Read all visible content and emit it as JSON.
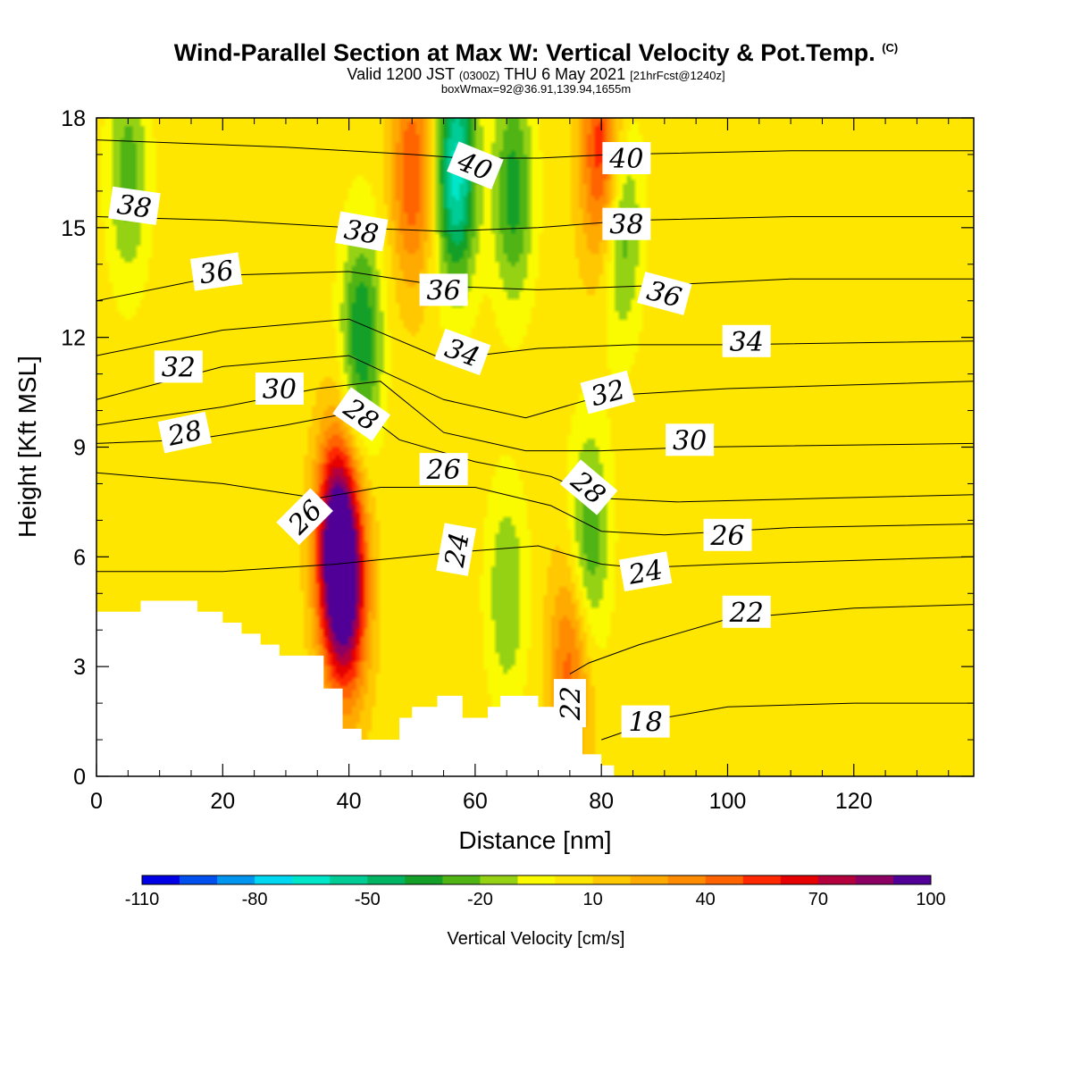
{
  "title": {
    "main": "Wind-Parallel Section at Max W: Vertical Velocity & Pot.Temp.",
    "copyright": "(C)",
    "valid_prefix": "Valid 1200 JST",
    "valid_utc": "(0300Z)",
    "valid_date": "THU 6 May 2021",
    "valid_fcst": "[21hrFcst@1240z]",
    "box": "boxWmax=92@36.91,139.94,1655m"
  },
  "chart_data": {
    "type": "heatmap",
    "xlabel": "Distance [nm]",
    "ylabel": "Height [Kft MSL]",
    "xlim": [
      0,
      139
    ],
    "ylim": [
      0,
      18
    ],
    "x_ticks": [
      0,
      20,
      40,
      60,
      80,
      100,
      120
    ],
    "y_ticks": [
      0,
      3,
      6,
      9,
      12,
      15,
      18
    ],
    "colorbar": {
      "title": "Vertical Velocity [cm/s]",
      "min": -110,
      "max": 100,
      "step": 10,
      "tick_labels": [
        "-110",
        "-80",
        "-50",
        "-20",
        "10",
        "40",
        "70",
        "100"
      ],
      "colors": [
        "#0000e6",
        "#0050f0",
        "#0096f0",
        "#00d7f0",
        "#00e6c8",
        "#00cc96",
        "#00b464",
        "#14a028",
        "#50b414",
        "#96d214",
        "#fafa00",
        "#ffe600",
        "#ffc800",
        "#ffaa00",
        "#ff8c00",
        "#ff6400",
        "#ff2800",
        "#e60000",
        "#b4003c",
        "#8c0064",
        "#500096"
      ]
    },
    "background_value_cm_s": 5,
    "velocity_features": [
      {
        "x": 38,
        "y": 6.2,
        "peak": 100
      },
      {
        "x": 40,
        "y": 5.0,
        "peak": 60
      },
      {
        "x": 50,
        "y": 16.5,
        "peak": 45
      },
      {
        "x": 57,
        "y": 16.5,
        "peak": -70
      },
      {
        "x": 80,
        "y": 17.0,
        "peak": 55
      },
      {
        "x": 75,
        "y": 3.0,
        "peak": 40
      },
      {
        "x": 42,
        "y": 12.0,
        "peak": -45
      },
      {
        "x": 66,
        "y": 16.0,
        "peak": -40
      },
      {
        "x": 83,
        "y": 15.0,
        "peak": -35
      },
      {
        "x": 5,
        "y": 16.5,
        "peak": -30
      },
      {
        "x": 78,
        "y": 6.5,
        "peak": -35
      },
      {
        "x": 65,
        "y": 5.0,
        "peak": -25
      }
    ],
    "terrain": [
      [
        0,
        4.5
      ],
      [
        7,
        4.5
      ],
      [
        7,
        4.8
      ],
      [
        16,
        4.8
      ],
      [
        16,
        4.5
      ],
      [
        20,
        4.5
      ],
      [
        20,
        4.2
      ],
      [
        23,
        4.2
      ],
      [
        23,
        3.9
      ],
      [
        26,
        3.9
      ],
      [
        26,
        3.6
      ],
      [
        29,
        3.6
      ],
      [
        29,
        3.3
      ],
      [
        36,
        3.3
      ],
      [
        36,
        2.4
      ],
      [
        39,
        2.4
      ],
      [
        39,
        1.3
      ],
      [
        42,
        1.3
      ],
      [
        42,
        1.0
      ],
      [
        48,
        1.0
      ],
      [
        48,
        1.6
      ],
      [
        50,
        1.6
      ],
      [
        50,
        1.9
      ],
      [
        54,
        1.9
      ],
      [
        54,
        2.2
      ],
      [
        58,
        2.2
      ],
      [
        58,
        1.6
      ],
      [
        62,
        1.6
      ],
      [
        62,
        1.9
      ],
      [
        64,
        1.9
      ],
      [
        64,
        2.2
      ],
      [
        70,
        2.2
      ],
      [
        70,
        1.9
      ],
      [
        75,
        1.9
      ],
      [
        75,
        1.4
      ],
      [
        77,
        1.4
      ],
      [
        77,
        0.6
      ],
      [
        80,
        0.6
      ],
      [
        80,
        0.3
      ],
      [
        82,
        0.3
      ],
      [
        82,
        0
      ]
    ],
    "isentropes": [
      {
        "theta": 18,
        "pts": [
          [
            80,
            1.0
          ],
          [
            90,
            1.6
          ],
          [
            100,
            1.9
          ],
          [
            120,
            2.0
          ],
          [
            139,
            2.0
          ]
        ]
      },
      {
        "theta": 22,
        "pts": [
          [
            75,
            2.8
          ],
          [
            78,
            3.1
          ],
          [
            86,
            3.6
          ],
          [
            100,
            4.3
          ],
          [
            120,
            4.6
          ],
          [
            139,
            4.7
          ]
        ]
      },
      {
        "theta": 24,
        "pts": [
          [
            0,
            5.6
          ],
          [
            20,
            5.6
          ],
          [
            38,
            5.8
          ],
          [
            55,
            6.1
          ],
          [
            70,
            6.3
          ],
          [
            80,
            5.8
          ],
          [
            86,
            5.7
          ],
          [
            100,
            5.8
          ],
          [
            120,
            5.9
          ],
          [
            139,
            6.0
          ]
        ]
      },
      {
        "theta": 26,
        "pts": [
          [
            0,
            8.3
          ],
          [
            20,
            8.0
          ],
          [
            35,
            7.6
          ],
          [
            45,
            7.9
          ],
          [
            60,
            7.9
          ],
          [
            72,
            7.4
          ],
          [
            80,
            6.7
          ],
          [
            90,
            6.6
          ],
          [
            110,
            6.8
          ],
          [
            139,
            6.9
          ]
        ]
      },
      {
        "theta": 28,
        "pts": [
          [
            0,
            9.1
          ],
          [
            15,
            9.2
          ],
          [
            30,
            9.6
          ],
          [
            42,
            10.0
          ],
          [
            48,
            9.2
          ],
          [
            60,
            8.6
          ],
          [
            72,
            8.2
          ],
          [
            80,
            7.6
          ],
          [
            92,
            7.5
          ],
          [
            115,
            7.6
          ],
          [
            139,
            7.7
          ]
        ]
      },
      {
        "theta": 30,
        "pts": [
          [
            0,
            9.6
          ],
          [
            20,
            10.1
          ],
          [
            35,
            10.6
          ],
          [
            45,
            10.8
          ],
          [
            55,
            9.4
          ],
          [
            68,
            8.9
          ],
          [
            80,
            8.9
          ],
          [
            95,
            9.0
          ],
          [
            139,
            9.1
          ]
        ]
      },
      {
        "theta": 32,
        "pts": [
          [
            0,
            10.3
          ],
          [
            20,
            11.2
          ],
          [
            40,
            11.5
          ],
          [
            55,
            10.3
          ],
          [
            68,
            9.8
          ],
          [
            80,
            10.4
          ],
          [
            100,
            10.6
          ],
          [
            139,
            10.8
          ]
        ]
      },
      {
        "theta": 34,
        "pts": [
          [
            0,
            11.5
          ],
          [
            20,
            12.2
          ],
          [
            40,
            12.5
          ],
          [
            55,
            11.4
          ],
          [
            70,
            11.7
          ],
          [
            85,
            11.8
          ],
          [
            100,
            11.8
          ],
          [
            139,
            11.9
          ]
        ]
      },
      {
        "theta": 36,
        "pts": [
          [
            0,
            13.0
          ],
          [
            20,
            13.7
          ],
          [
            40,
            13.8
          ],
          [
            55,
            13.4
          ],
          [
            70,
            13.3
          ],
          [
            86,
            13.4
          ],
          [
            110,
            13.6
          ],
          [
            139,
            13.6
          ]
        ]
      },
      {
        "theta": 38,
        "pts": [
          [
            0,
            15.3
          ],
          [
            20,
            15.2
          ],
          [
            40,
            15.0
          ],
          [
            55,
            14.9
          ],
          [
            70,
            15.0
          ],
          [
            85,
            15.2
          ],
          [
            110,
            15.3
          ],
          [
            139,
            15.3
          ]
        ]
      },
      {
        "theta": 40,
        "pts": [
          [
            0,
            17.4
          ],
          [
            30,
            17.2
          ],
          [
            50,
            17.0
          ],
          [
            58,
            16.9
          ],
          [
            70,
            16.9
          ],
          [
            82,
            17.0
          ],
          [
            110,
            17.1
          ],
          [
            139,
            17.1
          ]
        ]
      }
    ],
    "labels": [
      {
        "text": "38",
        "x": 6,
        "y": 15.6,
        "rot": 8
      },
      {
        "text": "36",
        "x": 19,
        "y": 13.8,
        "rot": -8
      },
      {
        "text": "32",
        "x": 13,
        "y": 11.2,
        "rot": 0
      },
      {
        "text": "30",
        "x": 29,
        "y": 10.6,
        "rot": 0
      },
      {
        "text": "28",
        "x": 14,
        "y": 9.4,
        "rot": -12
      },
      {
        "text": "38",
        "x": 42,
        "y": 14.9,
        "rot": 10
      },
      {
        "text": "28",
        "x": 42,
        "y": 9.9,
        "rot": 35
      },
      {
        "text": "26",
        "x": 33,
        "y": 7.1,
        "rot": -45
      },
      {
        "text": "40",
        "x": 60,
        "y": 16.7,
        "rot": 22
      },
      {
        "text": "36",
        "x": 55,
        "y": 13.3,
        "rot": 0
      },
      {
        "text": "34",
        "x": 58,
        "y": 11.6,
        "rot": 20
      },
      {
        "text": "26",
        "x": 55,
        "y": 8.4,
        "rot": 0
      },
      {
        "text": "24",
        "x": 57,
        "y": 6.2,
        "rot": -80
      },
      {
        "text": "40",
        "x": 84,
        "y": 16.9,
        "rot": 0
      },
      {
        "text": "38",
        "x": 84,
        "y": 15.1,
        "rot": 0
      },
      {
        "text": "36",
        "x": 90,
        "y": 13.2,
        "rot": 15
      },
      {
        "text": "32",
        "x": 81,
        "y": 10.5,
        "rot": -15
      },
      {
        "text": "28",
        "x": 78,
        "y": 7.9,
        "rot": 40
      },
      {
        "text": "24",
        "x": 87,
        "y": 5.6,
        "rot": -10
      },
      {
        "text": "22",
        "x": 75,
        "y": 2.0,
        "rot": -90
      },
      {
        "text": "18",
        "x": 87,
        "y": 1.5,
        "rot": 0
      },
      {
        "text": "34",
        "x": 103,
        "y": 11.9,
        "rot": 0
      },
      {
        "text": "30",
        "x": 94,
        "y": 9.2,
        "rot": 0
      },
      {
        "text": "26",
        "x": 100,
        "y": 6.6,
        "rot": 0
      },
      {
        "text": "22",
        "x": 103,
        "y": 4.5,
        "rot": 0
      }
    ]
  }
}
